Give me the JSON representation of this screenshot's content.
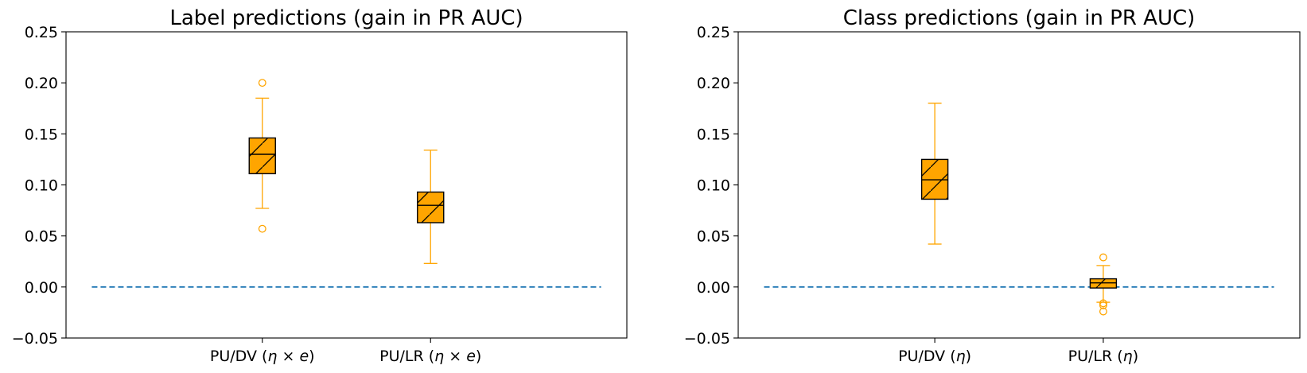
{
  "colors": {
    "box_fill": "#FFA500",
    "box_edge": "#000000",
    "whisker": "#FFA500",
    "baseline": "#1F77B4"
  },
  "chart_data": [
    {
      "type": "box",
      "title": "Label predictions (gain in PR AUC)",
      "ylim": [
        -0.05,
        0.25
      ],
      "yticks": [
        "−0.05",
        "0.00",
        "0.05",
        "0.10",
        "0.15",
        "0.20",
        "0.25"
      ],
      "ytick_values": [
        -0.05,
        0.0,
        0.05,
        0.1,
        0.15,
        0.2,
        0.25
      ],
      "baseline": 0.0,
      "grid": false,
      "categories": [
        {
          "pre": "PU/DV (",
          "sym": "η × e",
          "post": ")"
        },
        {
          "pre": "PU/LR (",
          "sym": "η × e",
          "post": ")"
        }
      ],
      "boxes": [
        {
          "whislo": 0.077,
          "q1": 0.111,
          "med": 0.13,
          "q3": 0.146,
          "whishi": 0.185,
          "fliers": [
            0.2,
            0.057
          ]
        },
        {
          "whislo": 0.023,
          "q1": 0.063,
          "med": 0.08,
          "q3": 0.093,
          "whishi": 0.134,
          "fliers": []
        }
      ]
    },
    {
      "type": "box",
      "title": "Class predictions (gain in PR AUC)",
      "ylim": [
        -0.05,
        0.25
      ],
      "yticks": [
        "−0.05",
        "0.00",
        "0.05",
        "0.10",
        "0.15",
        "0.20",
        "0.25"
      ],
      "ytick_values": [
        -0.05,
        0.0,
        0.05,
        0.1,
        0.15,
        0.2,
        0.25
      ],
      "baseline": 0.0,
      "grid": false,
      "categories": [
        {
          "pre": "PU/DV (",
          "sym": "η",
          "post": ")"
        },
        {
          "pre": "PU/LR (",
          "sym": "η",
          "post": ")"
        }
      ],
      "boxes": [
        {
          "whislo": 0.042,
          "q1": 0.086,
          "med": 0.105,
          "q3": 0.125,
          "whishi": 0.18,
          "fliers": []
        },
        {
          "whislo": -0.015,
          "q1": -0.001,
          "med": 0.004,
          "q3": 0.008,
          "whishi": 0.021,
          "fliers": [
            0.029,
            -0.016,
            -0.018,
            -0.024
          ]
        }
      ]
    }
  ]
}
